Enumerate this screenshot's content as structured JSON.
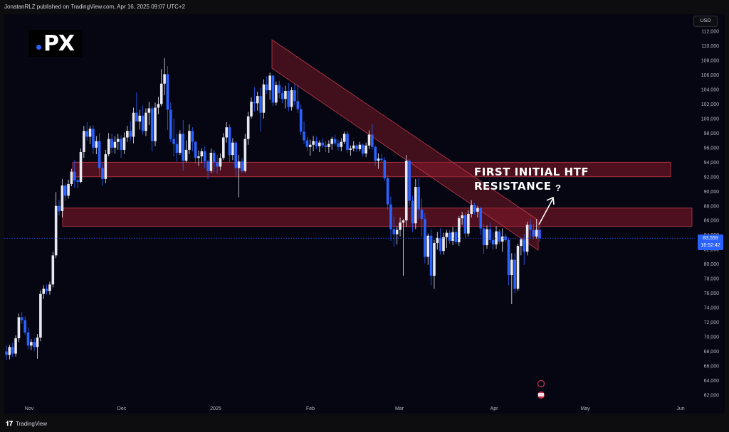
{
  "header": {
    "publish_info": "JonatanRLZ published on TradingView.com, Apr 16, 2025 09:07 UTC+2"
  },
  "currency": "USD",
  "logo": {
    "text": "PX"
  },
  "footer": {
    "brand": "TradingView"
  },
  "colors": {
    "up_candle": "#e8e8f0",
    "down_candle": "#2962ff",
    "zone_fill": "#8b1a2a",
    "zone_border": "#c23a4a",
    "background": "#060613",
    "price_tag": "#2962ff"
  },
  "annotation": {
    "text": "FIRST INITIAL HTF RESISTANCE",
    "question": "?"
  },
  "last_price": {
    "value": "83,559",
    "countdown": "16:52:42"
  },
  "chart_data": {
    "type": "candlestick",
    "y_axis": {
      "min": 62000,
      "max": 112000,
      "step": 2000,
      "labels": [
        "112,000",
        "110,000",
        "108,000",
        "106,000",
        "104,000",
        "102,000",
        "100,000",
        "98,000",
        "96,000",
        "94,000",
        "92,000",
        "90,000",
        "88,000",
        "86,000",
        "84,000",
        "82,000",
        "80,000",
        "78,000",
        "76,000",
        "74,000",
        "72,000",
        "70,000",
        "68,000",
        "66,000",
        "64,000",
        "62,000"
      ]
    },
    "x_axis": {
      "labels": [
        "Nov",
        "Dec",
        "2025",
        "Feb",
        "Mar",
        "Apr",
        "May",
        "Jun"
      ]
    },
    "zones": [
      {
        "name": "upper-resistance",
        "low": 92000,
        "high": 94000
      },
      {
        "name": "htf-resistance",
        "low": 85200,
        "high": 87700
      }
    ],
    "last_price": 83559,
    "candles": [
      [
        68000,
        68800,
        66800,
        67500
      ],
      [
        67500,
        68900,
        66900,
        68600
      ],
      [
        68600,
        69200,
        67200,
        67700
      ],
      [
        67700,
        70200,
        67300,
        69800
      ],
      [
        69800,
        73200,
        69300,
        72700
      ],
      [
        72700,
        73400,
        71800,
        72300
      ],
      [
        72300,
        72800,
        70200,
        70600
      ],
      [
        70600,
        71300,
        68300,
        68800
      ],
      [
        68800,
        69700,
        68200,
        69300
      ],
      [
        69300,
        69800,
        68100,
        68600
      ],
      [
        68600,
        70400,
        67000,
        69900
      ],
      [
        69900,
        76400,
        69400,
        75900
      ],
      [
        75900,
        77100,
        75200,
        76600
      ],
      [
        76600,
        77200,
        75800,
        76300
      ],
      [
        76300,
        77600,
        75800,
        77200
      ],
      [
        77200,
        81700,
        76800,
        81200
      ],
      [
        81200,
        89900,
        80800,
        88000
      ],
      [
        88000,
        88800,
        86700,
        87300
      ],
      [
        87300,
        91700,
        86400,
        90800
      ],
      [
        90800,
        91100,
        88700,
        89400
      ],
      [
        89400,
        91600,
        89000,
        91000
      ],
      [
        91000,
        93100,
        90700,
        92700
      ],
      [
        92700,
        94300,
        90500,
        91500
      ],
      [
        91500,
        92000,
        90400,
        91300
      ],
      [
        91300,
        95900,
        91100,
        95400
      ],
      [
        95400,
        99000,
        94600,
        98300
      ],
      [
        98300,
        99500,
        97000,
        97500
      ],
      [
        97500,
        99000,
        96500,
        98600
      ],
      [
        98600,
        99100,
        95200,
        96000
      ],
      [
        96000,
        97600,
        95100,
        96900
      ],
      [
        96900,
        98000,
        92100,
        93200
      ],
      [
        93200,
        93800,
        90800,
        91700
      ],
      [
        91700,
        95700,
        91100,
        95100
      ],
      [
        95100,
        98000,
        94800,
        97200
      ],
      [
        97200,
        97900,
        95300,
        96000
      ],
      [
        96000,
        97600,
        95200,
        96800
      ],
      [
        96800,
        97900,
        95700,
        97200
      ],
      [
        97200,
        97700,
        94600,
        95700
      ],
      [
        95700,
        98100,
        95100,
        97400
      ],
      [
        97400,
        99000,
        96800,
        98300
      ],
      [
        98300,
        99600,
        96900,
        97500
      ],
      [
        97500,
        101500,
        96600,
        100800
      ],
      [
        100800,
        103600,
        99800,
        99600
      ],
      [
        99600,
        101200,
        98500,
        100400
      ],
      [
        100400,
        101800,
        97800,
        98300
      ],
      [
        98300,
        101400,
        97600,
        100800
      ],
      [
        100800,
        102300,
        99100,
        101400
      ],
      [
        101400,
        101700,
        95500,
        96900
      ],
      [
        96900,
        102200,
        96200,
        101500
      ],
      [
        101500,
        103000,
        100600,
        102000
      ],
      [
        102000,
        106800,
        101700,
        104800
      ],
      [
        104800,
        108300,
        103200,
        106100
      ],
      [
        106100,
        107200,
        98400,
        101200
      ],
      [
        101200,
        102200,
        96800,
        97200
      ],
      [
        97200,
        100000,
        94800,
        96500
      ],
      [
        96500,
        97900,
        94100,
        95300
      ],
      [
        95300,
        98400,
        95000,
        97900
      ],
      [
        97900,
        99800,
        92800,
        94200
      ],
      [
        94200,
        97000,
        94000,
        95700
      ],
      [
        95700,
        99200,
        95100,
        98300
      ],
      [
        98300,
        98800,
        95500,
        96800
      ],
      [
        96800,
        96900,
        93800,
        94600
      ],
      [
        94600,
        95600,
        93500,
        94800
      ],
      [
        94800,
        95900,
        93900,
        95500
      ],
      [
        95500,
        96200,
        93200,
        94100
      ],
      [
        94100,
        94300,
        91700,
        92800
      ],
      [
        92800,
        95900,
        92500,
        95300
      ],
      [
        95300,
        95700,
        92600,
        94000
      ],
      [
        94000,
        95000,
        92400,
        93400
      ],
      [
        93400,
        95200,
        92900,
        94600
      ],
      [
        94600,
        98000,
        94300,
        97400
      ],
      [
        97400,
        99500,
        96700,
        98800
      ],
      [
        98800,
        99200,
        94000,
        95000
      ],
      [
        95000,
        97300,
        94300,
        96700
      ],
      [
        96700,
        96900,
        92100,
        93200
      ],
      [
        93200,
        95000,
        89200,
        94100
      ],
      [
        94100,
        94600,
        92500,
        92800
      ],
      [
        92800,
        97900,
        92600,
        97200
      ],
      [
        97200,
        100900,
        96400,
        100300
      ],
      [
        100300,
        102900,
        100000,
        102300
      ],
      [
        102300,
        104300,
        101000,
        102100
      ],
      [
        102100,
        103700,
        101100,
        103100
      ],
      [
        103100,
        104200,
        98200,
        100800
      ],
      [
        100800,
        105400,
        100000,
        104700
      ],
      [
        104700,
        105800,
        103400,
        103900
      ],
      [
        103900,
        106300,
        102600,
        105900
      ],
      [
        105900,
        106000,
        101700,
        102200
      ],
      [
        102200,
        105100,
        101800,
        104600
      ],
      [
        104600,
        105200,
        102800,
        103500
      ],
      [
        103500,
        104300,
        102100,
        102700
      ],
      [
        102700,
        104500,
        101400,
        103800
      ],
      [
        103800,
        104900,
        101000,
        101600
      ],
      [
        101600,
        104300,
        101100,
        103900
      ],
      [
        103900,
        104800,
        101800,
        102400
      ],
      [
        102400,
        104600,
        100800,
        101300
      ],
      [
        101300,
        101900,
        97800,
        98200
      ],
      [
        98200,
        99600,
        96500,
        97000
      ],
      [
        97000,
        97500,
        95600,
        96100
      ],
      [
        96100,
        97100,
        94900,
        96400
      ],
      [
        96400,
        97600,
        95500,
        96900
      ],
      [
        96900,
        97500,
        95800,
        96200
      ],
      [
        96200,
        97000,
        95400,
        96700
      ],
      [
        96700,
        97300,
        96000,
        96300
      ],
      [
        96300,
        96900,
        95400,
        96100
      ],
      [
        96100,
        97000,
        95300,
        96500
      ],
      [
        96500,
        97500,
        95700,
        97200
      ],
      [
        97200,
        97800,
        96300,
        96600
      ],
      [
        96600,
        97100,
        95600,
        96100
      ],
      [
        96100,
        97300,
        95500,
        96800
      ],
      [
        96800,
        98200,
        96500,
        97900
      ],
      [
        97900,
        98300,
        95300,
        95700
      ],
      [
        95700,
        96300,
        94900,
        95900
      ],
      [
        95900,
        96900,
        95500,
        96300
      ],
      [
        96300,
        96500,
        95400,
        95800
      ],
      [
        95800,
        96800,
        95500,
        96400
      ],
      [
        96400,
        96600,
        94800,
        95200
      ],
      [
        95200,
        96700,
        94700,
        96300
      ],
      [
        96300,
        98400,
        95800,
        97800
      ],
      [
        97800,
        99200,
        95700,
        96100
      ],
      [
        96100,
        96300,
        93500,
        94200
      ],
      [
        94200,
        95200,
        93100,
        94500
      ],
      [
        94500,
        95100,
        94000,
        94300
      ],
      [
        94300,
        94700,
        91400,
        91800
      ],
      [
        91800,
        92200,
        87500,
        88200
      ],
      [
        88200,
        89300,
        83200,
        84800
      ],
      [
        84800,
        86500,
        82400,
        84100
      ],
      [
        84100,
        85200,
        82700,
        84700
      ],
      [
        84700,
        86400,
        83800,
        85700
      ],
      [
        85700,
        86200,
        78400,
        86000
      ],
      [
        86000,
        95000,
        85100,
        94200
      ],
      [
        94200,
        94400,
        88000,
        88700
      ],
      [
        88700,
        89400,
        84400,
        85600
      ],
      [
        85600,
        91700,
        84800,
        90600
      ],
      [
        90600,
        91800,
        86200,
        87500
      ],
      [
        87500,
        89000,
        83800,
        86200
      ],
      [
        86200,
        87000,
        80100,
        81000
      ],
      [
        81000,
        84200,
        79900,
        83900
      ],
      [
        83900,
        84800,
        77100,
        78400
      ],
      [
        78400,
        83300,
        76600,
        82900
      ],
      [
        82900,
        84400,
        82000,
        83600
      ],
      [
        83600,
        84900,
        81300,
        81800
      ],
      [
        81800,
        84300,
        81300,
        83700
      ],
      [
        83700,
        84700,
        82200,
        84300
      ],
      [
        84300,
        84700,
        82800,
        83200
      ],
      [
        83200,
        85100,
        82600,
        84400
      ],
      [
        84400,
        84800,
        82700,
        83000
      ],
      [
        83000,
        86600,
        82500,
        86300
      ],
      [
        86300,
        87200,
        85400,
        86700
      ],
      [
        86700,
        87100,
        83600,
        84200
      ],
      [
        84200,
        87400,
        83800,
        86900
      ],
      [
        86900,
        88800,
        86400,
        88100
      ],
      [
        88100,
        88400,
        86800,
        87200
      ],
      [
        87200,
        88000,
        86400,
        87700
      ],
      [
        87700,
        87900,
        84000,
        84900
      ],
      [
        84900,
        85500,
        81400,
        82600
      ],
      [
        82600,
        85300,
        82100,
        84800
      ],
      [
        84800,
        85700,
        82900,
        83300
      ],
      [
        83300,
        84400,
        82000,
        82700
      ],
      [
        82700,
        85200,
        82100,
        84500
      ],
      [
        84500,
        84800,
        82700,
        83100
      ],
      [
        83100,
        84900,
        81700,
        83800
      ],
      [
        83800,
        84200,
        83000,
        83300
      ],
      [
        83300,
        83600,
        77100,
        78500
      ],
      [
        78500,
        81500,
        74500,
        80600
      ],
      [
        80600,
        81500,
        76000,
        76600
      ],
      [
        76600,
        82800,
        76300,
        82500
      ],
      [
        82500,
        83600,
        81200,
        83400
      ],
      [
        83400,
        84100,
        79900,
        81700
      ],
      [
        81700,
        85800,
        81200,
        85400
      ],
      [
        85400,
        86200,
        83600,
        84700
      ],
      [
        84700,
        85500,
        83400,
        83800
      ],
      [
        83800,
        86200,
        83500,
        84700
      ],
      [
        84700,
        85400,
        83100,
        83559
      ]
    ]
  }
}
